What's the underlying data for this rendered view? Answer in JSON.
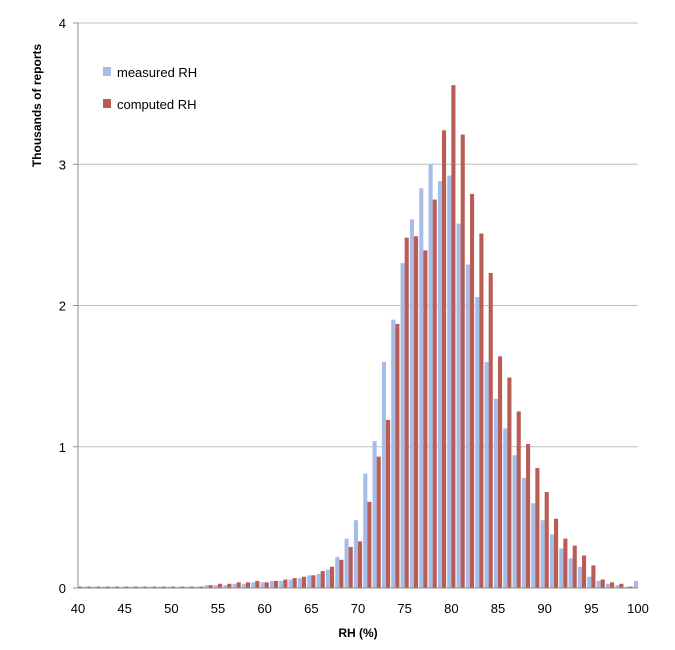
{
  "chart_data": {
    "type": "bar",
    "title": "",
    "xlabel": "RH (%)",
    "ylabel": "Thousands of reports",
    "xlim": [
      40,
      100
    ],
    "ylim": [
      0,
      4
    ],
    "x_ticks": [
      40,
      45,
      50,
      55,
      60,
      65,
      70,
      75,
      80,
      85,
      90,
      95,
      100
    ],
    "y_ticks": [
      0,
      1,
      2,
      3,
      4
    ],
    "grid": true,
    "legend_position": "top-left",
    "x": [
      40,
      41,
      42,
      43,
      44,
      45,
      46,
      47,
      48,
      49,
      50,
      51,
      52,
      53,
      54,
      55,
      56,
      57,
      58,
      59,
      60,
      61,
      62,
      63,
      64,
      65,
      66,
      67,
      68,
      69,
      70,
      71,
      72,
      73,
      74,
      75,
      76,
      77,
      78,
      79,
      80,
      81,
      82,
      83,
      84,
      85,
      86,
      87,
      88,
      89,
      90,
      91,
      92,
      93,
      94,
      95,
      96,
      97,
      98,
      99,
      100
    ],
    "series": [
      {
        "name": "measured RH",
        "color": "#a6bde8",
        "values": [
          0.01,
          0.01,
          0.01,
          0.01,
          0.01,
          0.01,
          0.01,
          0.01,
          0.01,
          0.01,
          0.01,
          0.01,
          0.01,
          0.01,
          0.02,
          0.02,
          0.02,
          0.03,
          0.03,
          0.04,
          0.04,
          0.05,
          0.05,
          0.06,
          0.07,
          0.09,
          0.1,
          0.13,
          0.22,
          0.35,
          0.48,
          0.81,
          1.04,
          1.6,
          1.9,
          2.3,
          2.61,
          2.83,
          3.0,
          2.88,
          2.92,
          2.58,
          2.29,
          2.06,
          1.6,
          1.34,
          1.13,
          0.94,
          0.78,
          0.6,
          0.48,
          0.38,
          0.28,
          0.21,
          0.15,
          0.08,
          0.05,
          0.03,
          0.02,
          0.01,
          0.05
        ]
      },
      {
        "name": "computed RH",
        "color": "#b85c55",
        "values": [
          0.01,
          0.01,
          0.01,
          0.01,
          0.01,
          0.01,
          0.01,
          0.01,
          0.01,
          0.01,
          0.01,
          0.01,
          0.01,
          0.01,
          0.02,
          0.03,
          0.03,
          0.04,
          0.04,
          0.05,
          0.04,
          0.05,
          0.06,
          0.07,
          0.08,
          0.09,
          0.12,
          0.15,
          0.2,
          0.29,
          0.33,
          0.61,
          0.93,
          1.19,
          1.87,
          2.48,
          2.49,
          2.39,
          2.75,
          3.24,
          3.56,
          3.21,
          2.79,
          2.51,
          2.23,
          1.64,
          1.49,
          1.25,
          1.02,
          0.85,
          0.68,
          0.49,
          0.35,
          0.3,
          0.23,
          0.16,
          0.06,
          0.04,
          0.03,
          0.01,
          0.04
        ]
      }
    ]
  }
}
